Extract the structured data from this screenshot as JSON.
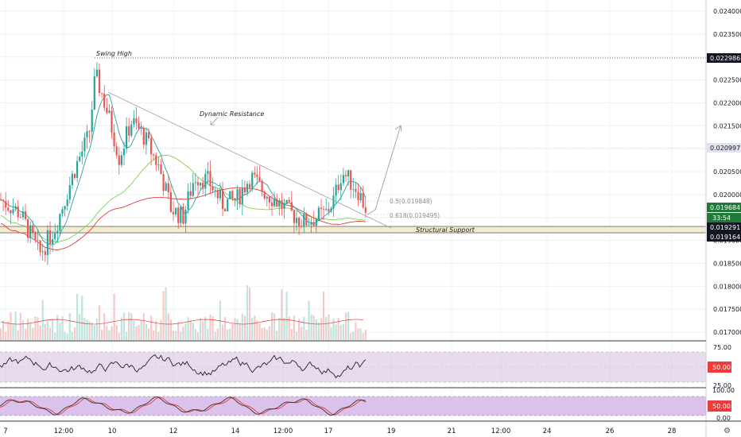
{
  "chart_data": {
    "type": "candlestick",
    "price_axis": {
      "ticks": [
        "0.024000",
        "0.023500",
        "0.023000",
        "0.022500",
        "0.022000",
        "0.021500",
        "0.021000",
        "0.020500",
        "0.020000",
        "0.019500",
        "0.019000",
        "0.018500",
        "0.018000",
        "0.017500",
        "0.017000"
      ],
      "range": [
        0.01685,
        0.02437
      ]
    },
    "time_axis": {
      "ticks": [
        "7",
        "12:00",
        "10",
        "12",
        "14",
        "12:00",
        "17",
        "19",
        "21",
        "12:00",
        "24",
        "26",
        "28"
      ]
    },
    "price_labels": [
      {
        "value": "0.022986",
        "style": "dark"
      },
      {
        "value": "0.020997",
        "style": "light"
      },
      {
        "value": "0.019684",
        "style": "green"
      },
      {
        "value": "33:54",
        "style": "green"
      },
      {
        "value": "0.019291",
        "style": "dark"
      },
      {
        "value": "0.019164",
        "style": "dark"
      }
    ],
    "annotations": {
      "swing_high": "Swing High",
      "dynamic_resistance": "Dynamic Resistance",
      "structural_support": "Structural Support",
      "fib_05": "0.5(0.019848)",
      "fib_0618": "0.618(0.019495)"
    },
    "candles": {
      "last_close": 0.019684,
      "swing_high": 0.022986
    },
    "rsi": {
      "ticks": [
        "75.00",
        "25.00"
      ],
      "current": "50.00",
      "range": [
        0,
        100
      ]
    },
    "stoch_rsi": {
      "ticks": [
        "100.00",
        "0.00"
      ],
      "current": "50.00",
      "range": [
        0,
        100
      ]
    },
    "colors": {
      "up": "#26a69a",
      "down": "#ef5350",
      "ma_fast": "#2aa0a0",
      "ma_mid": "#e53935",
      "ma_slow": "#7ccf5c",
      "rsi_band": "#d8c3e3",
      "stoch_band": "#cfaee6",
      "support_zone": "#f2e9c9"
    }
  }
}
